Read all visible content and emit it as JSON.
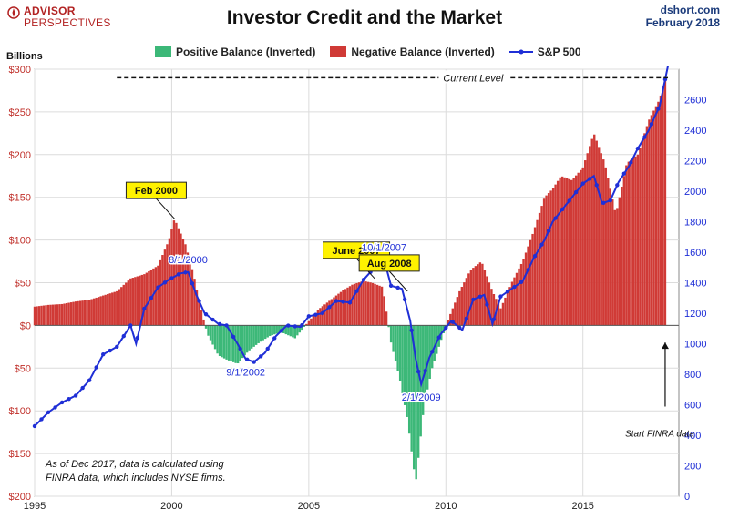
{
  "header": {
    "logo_line1": "ADVISOR",
    "logo_line2": "PERSPECTIVES",
    "title": "Investor Credit and the Market",
    "source_line1": "dshort.com",
    "source_line2": "February 2018",
    "left_axis_unit": "Billions"
  },
  "legend": {
    "positive": "Positive Balance (Inverted)",
    "negative": "Negative Balance (Inverted)",
    "sp500": "S&P 500"
  },
  "colors": {
    "positive": "#3cb878",
    "negative": "#d03a36",
    "sp500": "#1f2fd6",
    "callout_fill": "#fff200",
    "grid": "#dcdcdc",
    "left_axis_text": "#c0302a",
    "right_axis_text": "#1f2fd6"
  },
  "note": {
    "line1": "As of Dec 2017,  data is calculated using",
    "line2": "FINRA data, which includes NYSE firms."
  },
  "chart_data": {
    "type": "bar",
    "title": "Investor Credit and the Market",
    "left_axis": {
      "label": "Billions",
      "range": [
        -200,
        300
      ],
      "ticks": [
        {
          "v": 300,
          "t": "$300"
        },
        {
          "v": 250,
          "t": "$250"
        },
        {
          "v": 200,
          "t": "$200"
        },
        {
          "v": 150,
          "t": "$150"
        },
        {
          "v": 100,
          "t": "$100"
        },
        {
          "v": 50,
          "t": "$50"
        },
        {
          "v": 0,
          "t": "$0"
        },
        {
          "v": -50,
          "t": "$50"
        },
        {
          "v": -100,
          "t": "$100"
        },
        {
          "v": -150,
          "t": "$150"
        },
        {
          "v": -200,
          "t": "$200"
        }
      ]
    },
    "right_axis": {
      "range": [
        0,
        2800
      ],
      "ticks": [
        {
          "v": 2600,
          "t": "2600"
        },
        {
          "v": 2400,
          "t": "2400"
        },
        {
          "v": 2200,
          "t": "2200"
        },
        {
          "v": 2000,
          "t": "2000"
        },
        {
          "v": 1800,
          "t": "1800"
        },
        {
          "v": 1600,
          "t": "1600"
        },
        {
          "v": 1400,
          "t": "1400"
        },
        {
          "v": 1200,
          "t": "1200"
        },
        {
          "v": 1000,
          "t": "1000"
        },
        {
          "v": 800,
          "t": "800"
        },
        {
          "v": 600,
          "t": "600"
        },
        {
          "v": 400,
          "t": "400"
        },
        {
          "v": 200,
          "t": "200"
        },
        {
          "v": 0,
          "t": "0"
        }
      ]
    },
    "x_axis": {
      "range": [
        1995,
        2018.5
      ],
      "ticks": [
        {
          "v": 1995,
          "t": "1995"
        },
        {
          "v": 2000,
          "t": "2000"
        },
        {
          "v": 2005,
          "t": "2005"
        },
        {
          "v": 2010,
          "t": "2010"
        },
        {
          "v": 2015,
          "t": "2015"
        }
      ]
    },
    "grid": true,
    "legend_position": "top",
    "series": [
      {
        "name": "Positive Balance (Inverted) / Negative Balance (Inverted)",
        "axis": "left",
        "style": "bars",
        "points": [
          [
            1995.0,
            22
          ],
          [
            1995.5,
            24
          ],
          [
            1996.0,
            25
          ],
          [
            1996.5,
            28
          ],
          [
            1997.0,
            30
          ],
          [
            1997.5,
            35
          ],
          [
            1998.0,
            40
          ],
          [
            1998.5,
            55
          ],
          [
            1999.0,
            60
          ],
          [
            1999.5,
            70
          ],
          [
            1999.9,
            100
          ],
          [
            2000.1,
            125
          ],
          [
            2000.5,
            95
          ],
          [
            2000.8,
            60
          ],
          [
            2001.0,
            28
          ],
          [
            2001.3,
            -10
          ],
          [
            2001.7,
            -35
          ],
          [
            2002.0,
            -40
          ],
          [
            2002.4,
            -45
          ],
          [
            2002.8,
            -30
          ],
          [
            2003.2,
            -20
          ],
          [
            2003.6,
            -12
          ],
          [
            2004.0,
            -8
          ],
          [
            2004.5,
            -15
          ],
          [
            2005.0,
            5
          ],
          [
            2005.4,
            20
          ],
          [
            2005.8,
            30
          ],
          [
            2006.2,
            40
          ],
          [
            2006.6,
            48
          ],
          [
            2007.0,
            52
          ],
          [
            2007.3,
            50
          ],
          [
            2007.7,
            45
          ],
          [
            2008.0,
            -20
          ],
          [
            2008.3,
            -60
          ],
          [
            2008.6,
            -110
          ],
          [
            2008.9,
            -185
          ],
          [
            2009.2,
            -95
          ],
          [
            2009.5,
            -50
          ],
          [
            2009.8,
            -20
          ],
          [
            2010.1,
            8
          ],
          [
            2010.5,
            40
          ],
          [
            2010.9,
            65
          ],
          [
            2011.3,
            75
          ],
          [
            2011.7,
            40
          ],
          [
            2012.0,
            20
          ],
          [
            2012.4,
            50
          ],
          [
            2012.8,
            75
          ],
          [
            2013.2,
            110
          ],
          [
            2013.6,
            150
          ],
          [
            2013.9,
            160
          ],
          [
            2014.2,
            175
          ],
          [
            2014.6,
            170
          ],
          [
            2015.0,
            185
          ],
          [
            2015.4,
            225
          ],
          [
            2015.8,
            190
          ],
          [
            2016.2,
            130
          ],
          [
            2016.6,
            190
          ],
          [
            2017.0,
            200
          ],
          [
            2017.4,
            240
          ],
          [
            2017.8,
            265
          ],
          [
            2018.0,
            290
          ]
        ]
      },
      {
        "name": "S&P 500",
        "axis": "right",
        "style": "line",
        "points": [
          [
            1995.0,
            460
          ],
          [
            1995.5,
            550
          ],
          [
            1996.0,
            615
          ],
          [
            1996.5,
            660
          ],
          [
            1997.0,
            760
          ],
          [
            1997.5,
            930
          ],
          [
            1998.0,
            980
          ],
          [
            1998.5,
            1120
          ],
          [
            1998.7,
            1000
          ],
          [
            1999.0,
            1230
          ],
          [
            1999.5,
            1370
          ],
          [
            1999.9,
            1420
          ],
          [
            2000.3,
            1460
          ],
          [
            2000.6,
            1470
          ],
          [
            2000.9,
            1320
          ],
          [
            2001.2,
            1200
          ],
          [
            2001.7,
            1130
          ],
          [
            2002.0,
            1120
          ],
          [
            2002.4,
            1000
          ],
          [
            2002.7,
            900
          ],
          [
            2003.0,
            880
          ],
          [
            2003.4,
            940
          ],
          [
            2003.8,
            1050
          ],
          [
            2004.2,
            1120
          ],
          [
            2004.7,
            1110
          ],
          [
            2005.0,
            1180
          ],
          [
            2005.5,
            1200
          ],
          [
            2006.0,
            1280
          ],
          [
            2006.5,
            1270
          ],
          [
            2007.0,
            1420
          ],
          [
            2007.4,
            1500
          ],
          [
            2007.75,
            1550
          ],
          [
            2008.0,
            1380
          ],
          [
            2008.4,
            1360
          ],
          [
            2008.7,
            1150
          ],
          [
            2008.9,
            900
          ],
          [
            2009.1,
            735
          ],
          [
            2009.4,
            910
          ],
          [
            2009.8,
            1060
          ],
          [
            2010.2,
            1150
          ],
          [
            2010.6,
            1090
          ],
          [
            2011.0,
            1290
          ],
          [
            2011.4,
            1320
          ],
          [
            2011.7,
            1130
          ],
          [
            2012.0,
            1310
          ],
          [
            2012.4,
            1360
          ],
          [
            2012.8,
            1410
          ],
          [
            2013.2,
            1560
          ],
          [
            2013.6,
            1680
          ],
          [
            2013.9,
            1800
          ],
          [
            2014.2,
            1870
          ],
          [
            2014.6,
            1960
          ],
          [
            2015.0,
            2050
          ],
          [
            2015.4,
            2100
          ],
          [
            2015.7,
            1920
          ],
          [
            2016.0,
            1940
          ],
          [
            2016.3,
            2060
          ],
          [
            2016.7,
            2170
          ],
          [
            2017.0,
            2280
          ],
          [
            2017.4,
            2400
          ],
          [
            2017.8,
            2560
          ],
          [
            2018.1,
            2820
          ]
        ]
      }
    ],
    "current_level": 290,
    "annotations": {
      "current_level": "Current Level",
      "start_finra": "Start FINRA data",
      "callouts": [
        {
          "text": "Feb 2000",
          "x": 2000.1,
          "y": 125
        },
        {
          "text": "June 2007",
          "x": 2007.4,
          "y": 55
        },
        {
          "text": "Aug 2008",
          "x": 2008.6,
          "y": 40
        }
      ],
      "sp_labels": [
        {
          "text": "8/1/2000",
          "x": 2000.6,
          "y": 1470
        },
        {
          "text": "10/1/2007",
          "x": 2007.75,
          "y": 1550
        },
        {
          "text": "9/1/2002",
          "x": 2002.7,
          "y": 900
        },
        {
          "text": "2/1/2009",
          "x": 2009.1,
          "y": 735
        }
      ]
    }
  }
}
